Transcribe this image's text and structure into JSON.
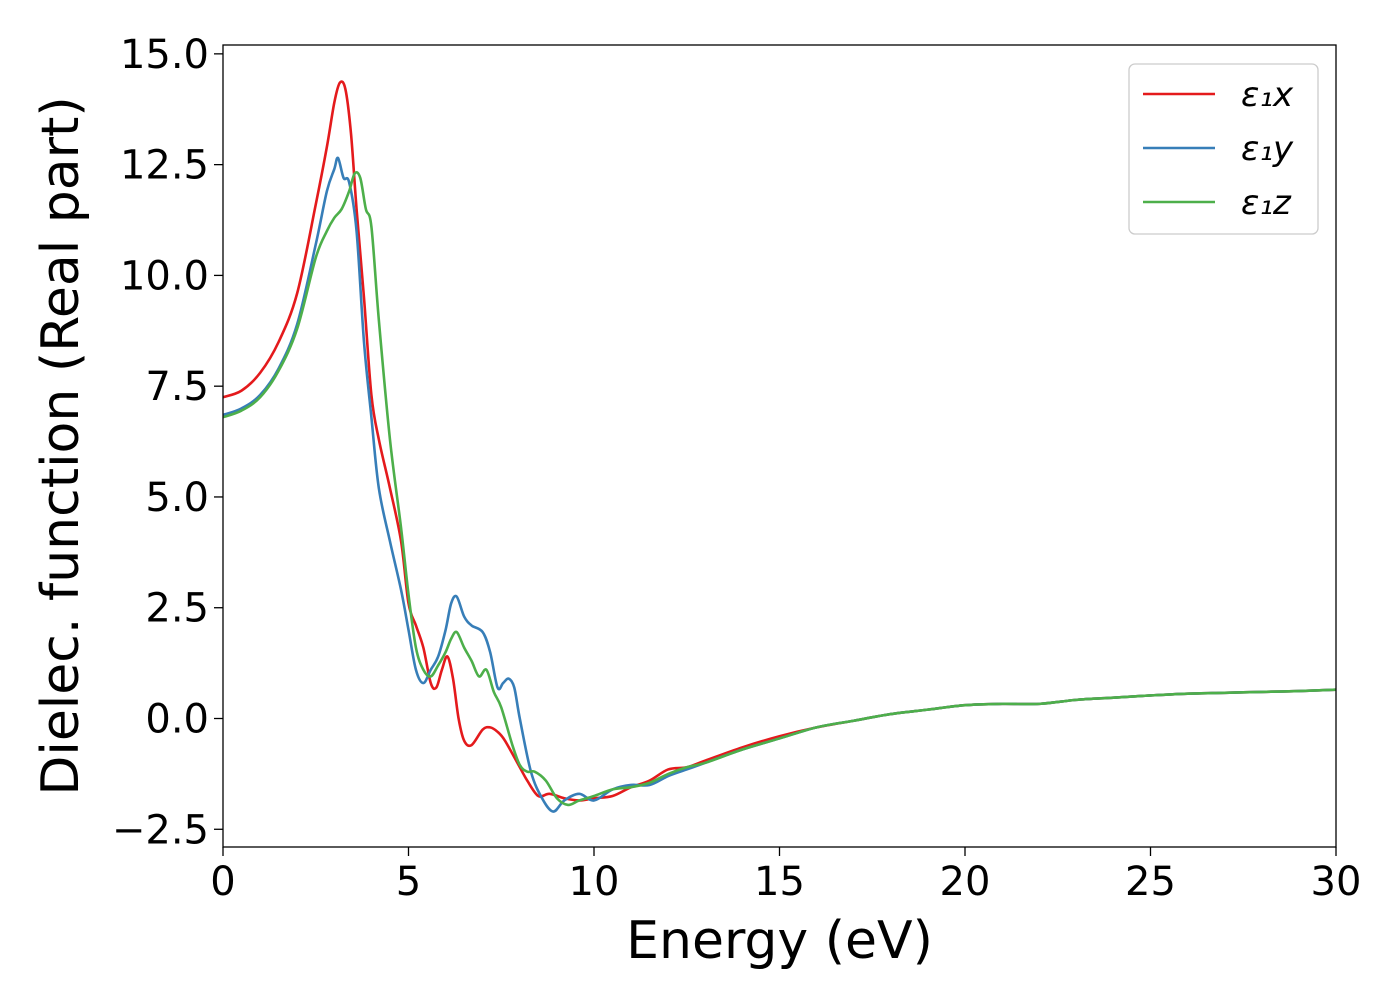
{
  "chart_data": {
    "type": "line",
    "title": "",
    "xlabel": "Energy (eV)",
    "ylabel": "Dielec. function (Real part)",
    "xlim": [
      0,
      30
    ],
    "ylim": [
      -2.9,
      15.2
    ],
    "xticks": [
      0,
      5,
      10,
      15,
      20,
      25,
      30
    ],
    "xtick_labels": [
      "0",
      "5",
      "10",
      "15",
      "20",
      "25",
      "30"
    ],
    "yticks": [
      -2.5,
      0.0,
      2.5,
      5.0,
      7.5,
      10.0,
      12.5,
      15.0
    ],
    "ytick_labels": [
      "−2.5",
      "0.0",
      "2.5",
      "5.0",
      "7.5",
      "10.0",
      "12.5",
      "15.0"
    ],
    "grid": false,
    "legend_position": "top-right",
    "series": [
      {
        "name": "ε₁x",
        "color": "#e41a1c",
        "x": [
          0,
          0.5,
          1.0,
          1.5,
          2.0,
          2.5,
          2.8,
          3.0,
          3.15,
          3.3,
          3.45,
          3.6,
          3.8,
          4.0,
          4.2,
          4.5,
          4.8,
          5.0,
          5.2,
          5.4,
          5.6,
          5.75,
          5.9,
          6.05,
          6.2,
          6.35,
          6.5,
          6.7,
          7.0,
          7.2,
          7.4,
          7.6,
          8.0,
          8.2,
          8.5,
          8.8,
          9.2,
          9.6,
          10.0,
          10.5,
          11.0,
          11.5,
          12.0,
          12.5,
          13.0,
          14.0,
          15.0,
          16.0,
          17.0,
          18.0,
          19.0,
          20.0,
          21.0,
          22.0,
          23.0,
          24.0,
          25.0,
          26.0,
          27.0,
          28.0,
          29.0,
          30.0
        ],
        "y": [
          7.25,
          7.4,
          7.8,
          8.5,
          9.6,
          11.6,
          12.9,
          13.9,
          14.35,
          14.2,
          13.2,
          11.5,
          9.5,
          7.3,
          6.3,
          5.2,
          4.0,
          2.6,
          2.1,
          1.6,
          0.8,
          0.7,
          1.1,
          1.4,
          0.9,
          0.0,
          -0.5,
          -0.6,
          -0.25,
          -0.2,
          -0.3,
          -0.5,
          -1.1,
          -1.4,
          -1.75,
          -1.7,
          -1.8,
          -1.85,
          -1.8,
          -1.75,
          -1.55,
          -1.4,
          -1.15,
          -1.1,
          -0.95,
          -0.65,
          -0.4,
          -0.2,
          -0.05,
          0.1,
          0.2,
          0.3,
          0.33,
          0.33,
          0.42,
          0.47,
          0.52,
          0.56,
          0.58,
          0.6,
          0.62,
          0.65
        ]
      },
      {
        "name": "ε₁y",
        "color": "#377eb8",
        "x": [
          0,
          0.5,
          1.0,
          1.5,
          2.0,
          2.5,
          2.8,
          3.0,
          3.1,
          3.25,
          3.4,
          3.6,
          3.8,
          4.0,
          4.2,
          4.5,
          4.8,
          5.0,
          5.2,
          5.4,
          5.6,
          5.8,
          6.0,
          6.15,
          6.3,
          6.5,
          6.7,
          7.0,
          7.2,
          7.4,
          7.55,
          7.7,
          7.85,
          8.0,
          8.3,
          8.6,
          8.9,
          9.2,
          9.6,
          10.0,
          10.5,
          11.0,
          11.5,
          12.0,
          12.5,
          13.0,
          14.0,
          15.0,
          16.0,
          17.0,
          18.0,
          19.0,
          20.0,
          21.0,
          22.0,
          23.0,
          24.0,
          25.0,
          26.0,
          27.0,
          28.0,
          29.0,
          30.0
        ],
        "y": [
          6.85,
          7.0,
          7.3,
          7.9,
          8.9,
          10.7,
          11.9,
          12.4,
          12.65,
          12.2,
          12.1,
          11.0,
          8.5,
          6.8,
          5.2,
          4.0,
          2.9,
          2.0,
          1.1,
          0.8,
          1.1,
          1.4,
          2.0,
          2.6,
          2.75,
          2.3,
          2.1,
          1.95,
          1.5,
          0.7,
          0.8,
          0.9,
          0.7,
          0.0,
          -1.2,
          -1.8,
          -2.1,
          -1.85,
          -1.7,
          -1.85,
          -1.6,
          -1.5,
          -1.5,
          -1.3,
          -1.15,
          -1.0,
          -0.7,
          -0.45,
          -0.2,
          -0.05,
          0.1,
          0.2,
          0.3,
          0.33,
          0.33,
          0.42,
          0.47,
          0.52,
          0.56,
          0.58,
          0.6,
          0.62,
          0.65
        ]
      },
      {
        "name": "ε₁z",
        "color": "#4daf4a",
        "x": [
          0,
          0.5,
          1.0,
          1.5,
          2.0,
          2.5,
          2.8,
          3.0,
          3.2,
          3.4,
          3.55,
          3.7,
          3.85,
          4.0,
          4.2,
          4.5,
          4.8,
          5.0,
          5.2,
          5.4,
          5.6,
          5.8,
          6.0,
          6.15,
          6.3,
          6.5,
          6.7,
          6.9,
          7.1,
          7.3,
          7.5,
          7.8,
          8.0,
          8.2,
          8.4,
          8.7,
          9.0,
          9.3,
          9.6,
          10.0,
          10.5,
          11.0,
          11.5,
          12.0,
          12.5,
          13.0,
          14.0,
          15.0,
          16.0,
          17.0,
          18.0,
          19.0,
          20.0,
          21.0,
          22.0,
          23.0,
          24.0,
          25.0,
          26.0,
          27.0,
          28.0,
          29.0,
          30.0
        ],
        "y": [
          6.8,
          6.95,
          7.25,
          7.85,
          8.8,
          10.4,
          11.0,
          11.3,
          11.5,
          11.9,
          12.3,
          12.2,
          11.5,
          11.1,
          9.0,
          6.3,
          4.3,
          2.8,
          1.6,
          1.1,
          0.95,
          1.2,
          1.5,
          1.8,
          1.95,
          1.6,
          1.3,
          0.95,
          1.1,
          0.6,
          0.25,
          -0.6,
          -1.05,
          -1.2,
          -1.2,
          -1.4,
          -1.8,
          -1.95,
          -1.85,
          -1.75,
          -1.6,
          -1.55,
          -1.45,
          -1.25,
          -1.1,
          -1.0,
          -0.7,
          -0.45,
          -0.2,
          -0.05,
          0.1,
          0.2,
          0.3,
          0.33,
          0.33,
          0.42,
          0.47,
          0.52,
          0.56,
          0.58,
          0.6,
          0.62,
          0.65
        ]
      }
    ]
  }
}
